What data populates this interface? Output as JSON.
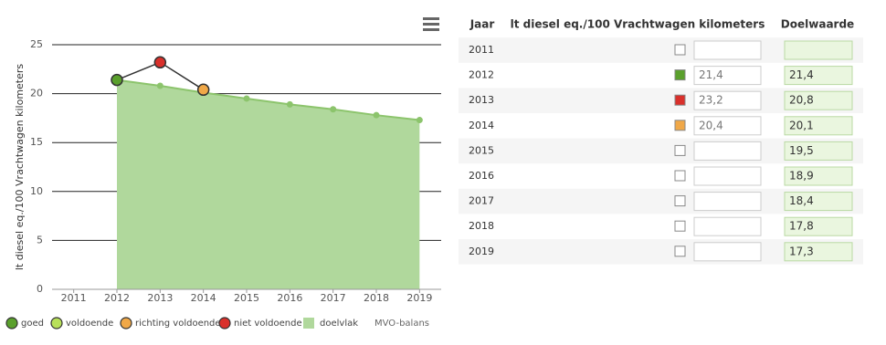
{
  "chart_data": {
    "type": "area-line",
    "y_label": "lt diesel eq./100 Vrachtwagen kilometers",
    "categories": [
      "2011",
      "2012",
      "2013",
      "2014",
      "2015",
      "2016",
      "2017",
      "2018",
      "2019"
    ],
    "ylim": [
      0,
      25
    ],
    "yticks": [
      0,
      5,
      10,
      15,
      20,
      25
    ],
    "grid": true,
    "series": [
      {
        "name": "doelvlak",
        "color": "#b0d89c",
        "marker_color": "#8cc46c",
        "values": [
          null,
          21.4,
          20.8,
          20.1,
          19.5,
          18.9,
          18.4,
          17.8,
          17.3
        ]
      },
      {
        "color": "#333333",
        "values": [
          null,
          21.4,
          23.2,
          20.4,
          null,
          null,
          null,
          null,
          null
        ],
        "point_colors": [
          null,
          "#5aa02c",
          "#d9302b",
          "#f0a848",
          null,
          null,
          null,
          null,
          null
        ]
      }
    ],
    "legend": [
      {
        "name": "goed",
        "color": "#5aa02c"
      },
      {
        "name": "voldoende",
        "color": "#b8e05a"
      },
      {
        "name": "richting voldoende",
        "color": "#f0a848"
      },
      {
        "name": "niet voldoende",
        "color": "#d9302b"
      }
    ],
    "credit": "MVO-balans"
  },
  "table": {
    "headers": [
      "Jaar",
      "lt diesel eq./100 Vrachtwagen kilometers",
      "Doelwaarde"
    ],
    "rows": [
      {
        "year": "2011",
        "color": null,
        "value": null,
        "target": null
      },
      {
        "year": "2012",
        "color": "#5aa02c",
        "value": "21,4",
        "target": "21,4"
      },
      {
        "year": "2013",
        "color": "#d9302b",
        "value": "23,2",
        "target": "20,8"
      },
      {
        "year": "2014",
        "color": "#f0a848",
        "value": "20,4",
        "target": "20,1"
      },
      {
        "year": "2015",
        "color": null,
        "value": null,
        "target": "19,5"
      },
      {
        "year": "2016",
        "color": null,
        "value": null,
        "target": "18,9"
      },
      {
        "year": "2017",
        "color": null,
        "value": null,
        "target": "18,4"
      },
      {
        "year": "2018",
        "color": null,
        "value": null,
        "target": "17,8"
      },
      {
        "year": "2019",
        "color": null,
        "value": null,
        "target": "17,3"
      }
    ]
  }
}
